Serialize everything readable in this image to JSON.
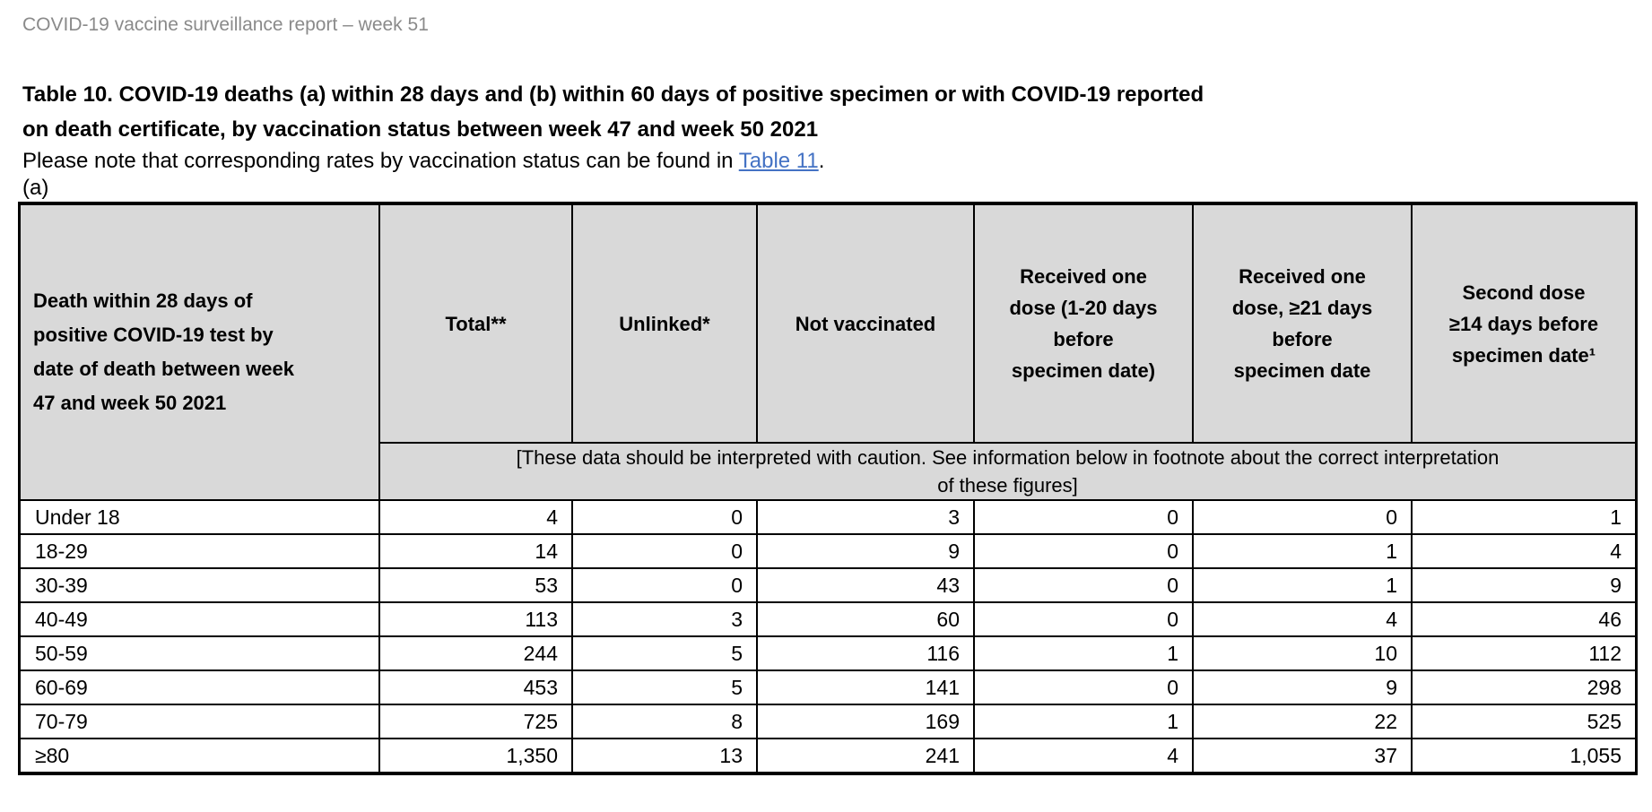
{
  "report_header": "COVID-19 vaccine surveillance report – week 51",
  "title": "Table 10. COVID-19 deaths (a) within 28 days and (b) within 60 days of positive specimen or with COVID-19 reported\non death certificate, by vaccination status between week 47 and week 50 2021",
  "note": {
    "prefix": "Please note that corresponding rates by vaccination status can be found in ",
    "link_label": "Table 11",
    "suffix": "."
  },
  "section_label": "(a)",
  "colors": {
    "header_cell_background": "#d9d9d9",
    "link": "#4472c4",
    "muted_header_text": "#8a8a8a",
    "border": "#000000"
  },
  "table": {
    "row_header_title": "Death within 28 days of\npositive COVID-19 test by\ndate of death between week\n47 and week 50 2021",
    "columns": [
      "Total**",
      "Unlinked*",
      "Not vaccinated",
      "Received one\ndose (1-20 days\nbefore\nspecimen date)",
      "Received one\ndose, ≥21 days\nbefore\nspecimen date",
      "Second dose\n≥14 days before\nspecimen date¹"
    ],
    "caution_note": "[These data should be interpreted with caution. See information below in footnote about the correct interpretation\nof these figures]",
    "rows": [
      {
        "label": "Under 18",
        "values": [
          "4",
          "0",
          "3",
          "0",
          "0",
          "1"
        ]
      },
      {
        "label": "18-29",
        "values": [
          "14",
          "0",
          "9",
          "0",
          "1",
          "4"
        ]
      },
      {
        "label": "30-39",
        "values": [
          "53",
          "0",
          "43",
          "0",
          "1",
          "9"
        ]
      },
      {
        "label": "40-49",
        "values": [
          "113",
          "3",
          "60",
          "0",
          "4",
          "46"
        ]
      },
      {
        "label": "50-59",
        "values": [
          "244",
          "5",
          "116",
          "1",
          "10",
          "112"
        ]
      },
      {
        "label": "60-69",
        "values": [
          "453",
          "5",
          "141",
          "0",
          "9",
          "298"
        ]
      },
      {
        "label": "70-79",
        "values": [
          "725",
          "8",
          "169",
          "1",
          "22",
          "525"
        ]
      },
      {
        "label": "≥80",
        "values": [
          "1,350",
          "13",
          "241",
          "4",
          "37",
          "1,055"
        ]
      }
    ]
  }
}
